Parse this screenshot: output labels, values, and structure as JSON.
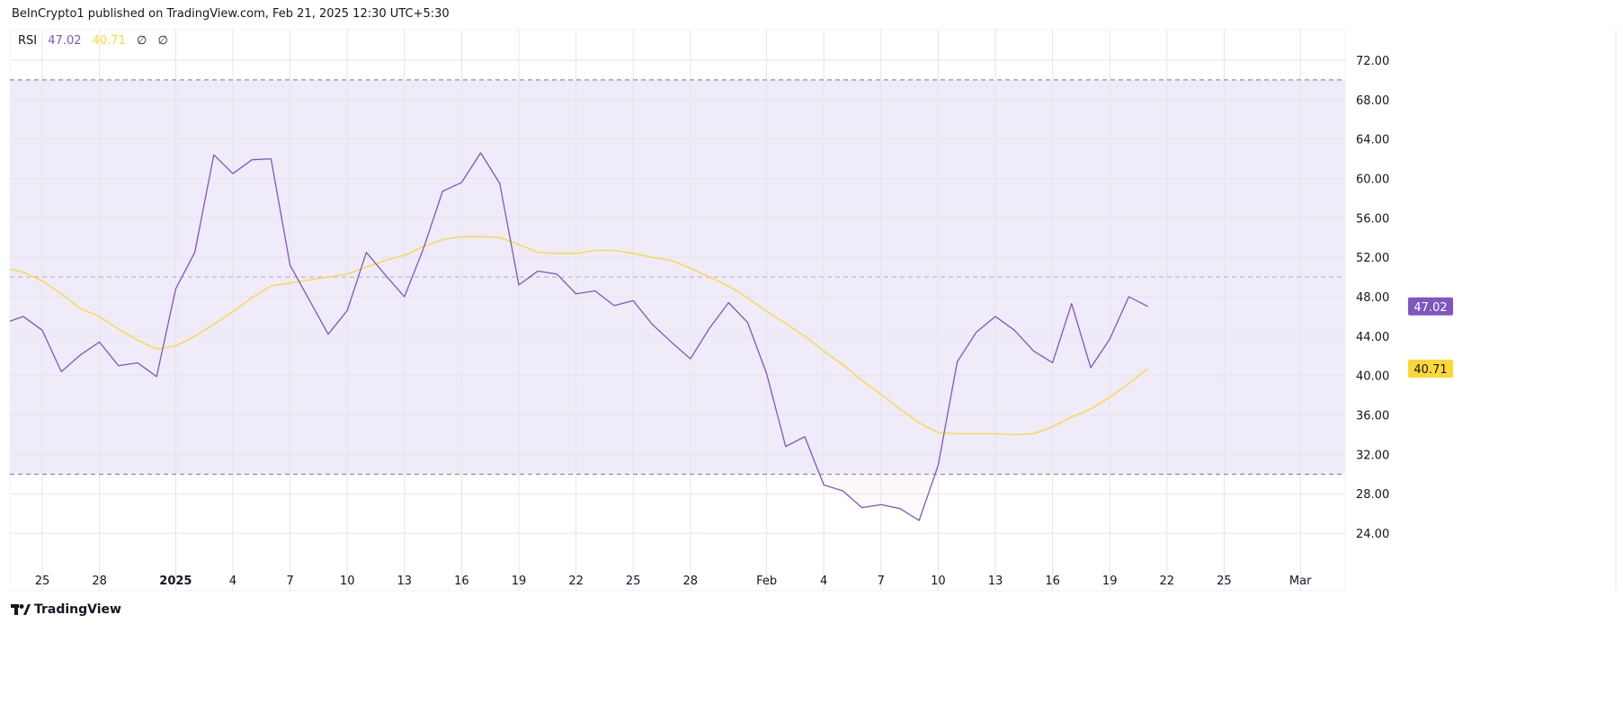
{
  "header": {
    "published": "BeInCrypto1 published on TradingView.com, Feb 21, 2025 12:30 UTC+5:30"
  },
  "legend": {
    "name": "RSI",
    "rsi_value": "47.02",
    "ma_value": "40.71",
    "extra1": "∅",
    "extra2": "∅"
  },
  "footer": {
    "logo_text": "TradingView"
  },
  "colors": {
    "rsi": "#7E57C2",
    "ma": "#FDD835",
    "band": "#EFEBF8",
    "oversold_fill": "#F9D6DC",
    "grid": "#E6E3EC"
  },
  "chart_data": {
    "type": "line",
    "title": "",
    "y_ticks": [
      "72.00",
      "68.00",
      "64.00",
      "60.00",
      "56.00",
      "52.00",
      "48.00",
      "44.00",
      "40.00",
      "36.00",
      "32.00",
      "28.00",
      "24.00"
    ],
    "ylim": [
      20.5,
      75
    ],
    "x_ticks": [
      {
        "date": "2024-12-25",
        "label": "25"
      },
      {
        "date": "2024-12-28",
        "label": "28"
      },
      {
        "date": "2025-01-01",
        "label": "2025"
      },
      {
        "date": "2025-01-04",
        "label": "4"
      },
      {
        "date": "2025-01-07",
        "label": "7"
      },
      {
        "date": "2025-01-10",
        "label": "10"
      },
      {
        "date": "2025-01-13",
        "label": "13"
      },
      {
        "date": "2025-01-16",
        "label": "16"
      },
      {
        "date": "2025-01-19",
        "label": "19"
      },
      {
        "date": "2025-01-22",
        "label": "22"
      },
      {
        "date": "2025-01-25",
        "label": "25"
      },
      {
        "date": "2025-01-28",
        "label": "28"
      },
      {
        "date": "2025-02-01",
        "label": "Feb"
      },
      {
        "date": "2025-02-04",
        "label": "4"
      },
      {
        "date": "2025-02-07",
        "label": "7"
      },
      {
        "date": "2025-02-10",
        "label": "10"
      },
      {
        "date": "2025-02-13",
        "label": "13"
      },
      {
        "date": "2025-02-16",
        "label": "16"
      },
      {
        "date": "2025-02-19",
        "label": "19"
      },
      {
        "date": "2025-02-22",
        "label": "22"
      },
      {
        "date": "2025-02-25",
        "label": "25"
      },
      {
        "date": "2025-03-01",
        "label": "Mar"
      }
    ],
    "bands": {
      "upper": 70,
      "middle": 50,
      "lower": 30
    },
    "x_start": "2024-12-23",
    "series": [
      {
        "key": "rsi",
        "last_label": "47.02",
        "values": [
          45.3,
          46.0,
          44.6,
          40.4,
          42.1,
          43.4,
          41.0,
          41.3,
          39.9,
          48.8,
          52.5,
          62.4,
          60.5,
          61.9,
          62.0,
          51.2,
          47.7,
          44.2,
          46.6,
          52.5,
          50.2,
          48.0,
          52.9,
          58.7,
          59.6,
          62.6,
          59.5,
          49.2,
          50.6,
          50.3,
          48.3,
          48.6,
          47.1,
          47.6,
          45.2,
          43.4,
          41.7,
          44.8,
          47.4,
          45.4,
          40.2,
          32.8,
          33.8,
          28.9,
          28.3,
          26.6,
          26.9,
          26.5,
          25.3,
          30.9,
          41.4,
          44.4,
          46.0,
          44.6,
          42.5,
          41.3,
          47.3,
          40.8,
          43.7,
          48.0,
          47.02
        ]
      },
      {
        "key": "ma",
        "last_label": "40.71",
        "values": [
          50.9,
          50.5,
          49.6,
          48.3,
          46.8,
          46.0,
          44.7,
          43.6,
          42.7,
          43.0,
          44.0,
          45.2,
          46.5,
          47.9,
          49.1,
          49.4,
          49.7,
          50.0,
          50.3,
          51.0,
          51.7,
          52.2,
          53.1,
          53.8,
          54.1,
          54.1,
          54.0,
          53.3,
          52.5,
          52.4,
          52.4,
          52.7,
          52.7,
          52.4,
          52.0,
          51.7,
          50.9,
          50.0,
          49.1,
          47.9,
          46.5,
          45.3,
          44.0,
          42.5,
          41.1,
          39.5,
          38.1,
          36.6,
          35.2,
          34.2,
          34.1,
          34.1,
          34.1,
          34.0,
          34.1,
          34.8,
          35.8,
          36.6,
          37.8,
          39.2,
          40.71
        ]
      }
    ]
  }
}
